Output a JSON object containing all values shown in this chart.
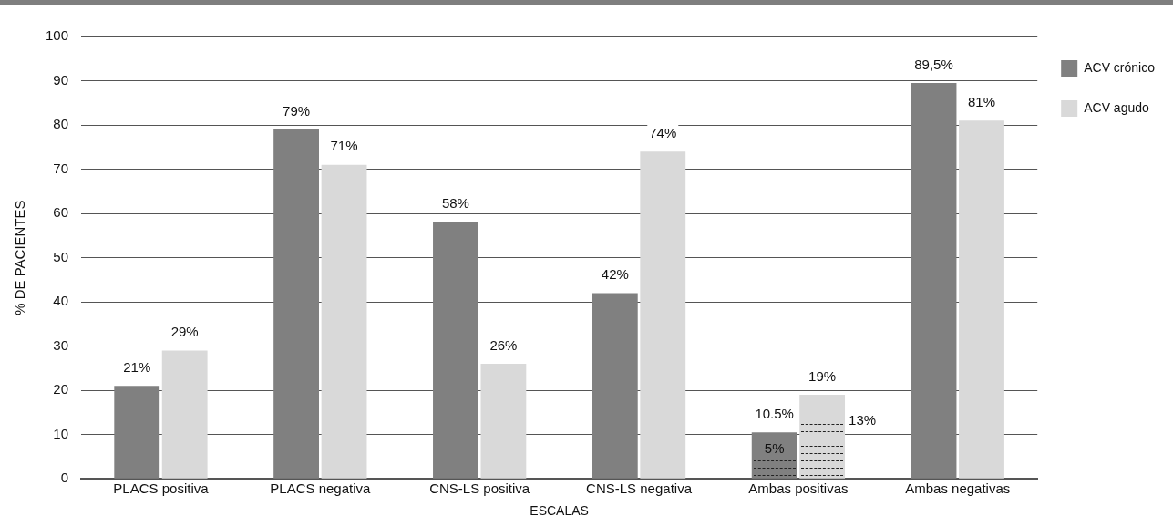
{
  "chart_data": {
    "type": "bar",
    "xlabel": "ESCALAS",
    "ylabel": "% DE PACIENTES",
    "categories": [
      "PLACS positiva",
      "PLACS negativa",
      "CNS-LS positiva",
      "CNS-LS negativa",
      "Ambas positivas",
      "Ambas negativas"
    ],
    "series": [
      {
        "name": "ACV crónico",
        "color": "#808080",
        "values": [
          21,
          79,
          58,
          42,
          10.5,
          89.5
        ],
        "value_labels": [
          "21%",
          "79%",
          "58%",
          "42%",
          "10.5%",
          "89,5%"
        ]
      },
      {
        "name": "ACV agudo",
        "color": "#d9d9d9",
        "values": [
          29,
          71,
          26,
          74,
          19,
          81
        ],
        "value_labels": [
          "29%",
          "71%",
          "26%",
          "74%",
          "19%",
          "81%"
        ]
      }
    ],
    "annotations": [
      {
        "text": "5%",
        "x": "Ambas positivas",
        "y": 5
      },
      {
        "text": "13%",
        "x": "Ambas positivas",
        "y": 13
      }
    ],
    "ylim": [
      0,
      100
    ],
    "yticks": [
      0,
      10,
      20,
      30,
      40,
      50,
      60,
      70,
      80,
      90,
      100
    ],
    "grid": "y",
    "legend": "top right"
  }
}
